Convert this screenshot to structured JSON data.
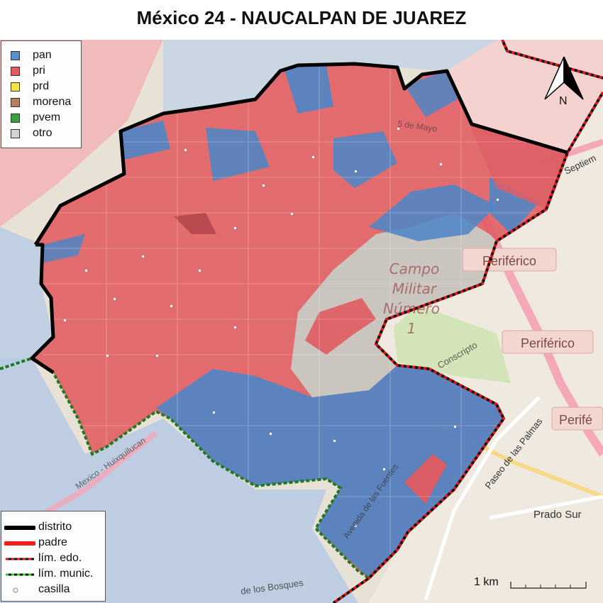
{
  "title": "México 24 - NAUCALPAN DE JUAREZ",
  "legend_parties": [
    {
      "label": "pan",
      "color": "#5b8fcc"
    },
    {
      "label": "pri",
      "color": "#e05a5f"
    },
    {
      "label": "prd",
      "color": "#f5e14a"
    },
    {
      "label": "morena",
      "color": "#b08060"
    },
    {
      "label": "pvem",
      "color": "#3d9e46"
    },
    {
      "label": "otro",
      "color": "#d4d4d4"
    }
  ],
  "legend_lines": [
    {
      "label": "distrito"
    },
    {
      "label": "padre"
    },
    {
      "label": "lím. edo."
    },
    {
      "label": "lím. munic."
    },
    {
      "label": "casilla"
    }
  ],
  "basemap_labels": {
    "campo_militar": [
      "Campo",
      "Militar",
      "Número",
      "1"
    ],
    "periferico_1": "Periférico",
    "periferico_2": "Periférico",
    "periferico_3": "Perifé",
    "paseo_palmas": "Paseo de las Palmas",
    "prado_sur": "Prado Sur",
    "fuentes": "Avenida de las Fuentes",
    "bosques": "de los Bosques",
    "mexico_huix": "Mexico - Huixquilucan",
    "conscripto": "Conscripto",
    "mayo": "5 de Mayo",
    "septiembre": "Septiem"
  },
  "scalebar": {
    "label": "1 km"
  },
  "north_arrow": {
    "label": "N"
  }
}
